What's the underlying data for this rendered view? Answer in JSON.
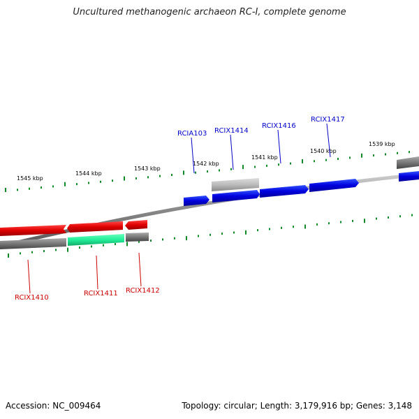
{
  "title": "Uncultured methanogenic archaeon RC-I, complete genome",
  "footer": {
    "accession": "Accession: NC_009464",
    "summary": "Topology: circular; Length: 3,179,916 bp; Genes: 3,148"
  },
  "colors": {
    "forward_gene": "#0000dd",
    "reverse_gene": "#e00000",
    "selected_gene": "#22ee99",
    "gray_gene": "#777777",
    "light_gray_gene": "#bbbbbb",
    "tick": "#11882a",
    "forward_label": "#0000cc",
    "reverse_label": "#cc0000"
  },
  "scale_labels": [
    "1545 kbp",
    "1544 kbp",
    "1543 kbp",
    "1542 kbp",
    "1541 kbp",
    "1540 kbp",
    "1539 kbp"
  ],
  "forward_gene_labels": [
    "RCIA103",
    "RCIX1414",
    "RCIX1416",
    "RCIX1417"
  ],
  "reverse_gene_labels": [
    "RCIX1410",
    "RCIX1411",
    "RCIX1412"
  ]
}
